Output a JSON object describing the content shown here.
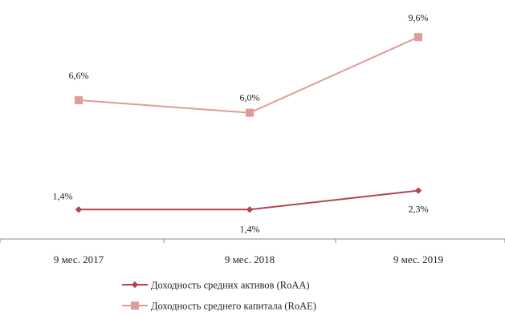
{
  "chart_data": {
    "type": "line",
    "categories": [
      "9 мес. 2017",
      "9 мес. 2018",
      "9 мес. 2019"
    ],
    "series": [
      {
        "name": "Доходность средних активов (RoAA)",
        "values": [
          1.4,
          1.4,
          2.3
        ],
        "labels": [
          "1,4%",
          "1,4%",
          "2,3%"
        ],
        "color": "#b5444f",
        "marker": "diamond"
      },
      {
        "name": "Доходность среднего капитала (RoAE)",
        "values": [
          6.6,
          6.0,
          9.6
        ],
        "labels": [
          "6,6%",
          "6,0%",
          "9,6%"
        ],
        "color": "#dd9c98",
        "marker": "square"
      }
    ],
    "ylim": [
      0,
      10.6
    ],
    "grid": false,
    "legend_position": "bottom"
  }
}
